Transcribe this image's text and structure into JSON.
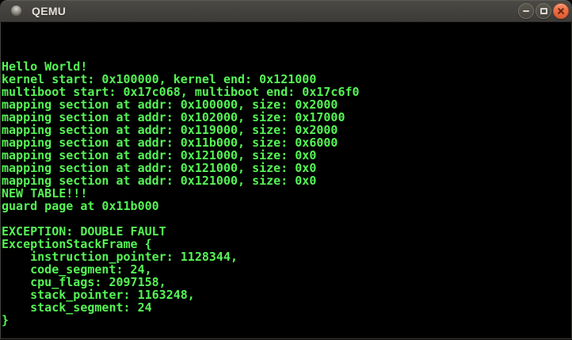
{
  "window": {
    "title": "QEMU",
    "controls": [
      {
        "name": "minimize",
        "icon": "minimize-icon"
      },
      {
        "name": "maximize",
        "icon": "maximize-icon"
      },
      {
        "name": "close",
        "icon": "close-icon"
      }
    ]
  },
  "terminal": {
    "lines": [
      "",
      "",
      "",
      "Hello World!",
      "kernel start: 0x100000, kernel end: 0x121000",
      "multiboot start: 0x17c068, multiboot end: 0x17c6f0",
      "mapping section at addr: 0x100000, size: 0x2000",
      "mapping section at addr: 0x102000, size: 0x17000",
      "mapping section at addr: 0x119000, size: 0x2000",
      "mapping section at addr: 0x11b000, size: 0x6000",
      "mapping section at addr: 0x121000, size: 0x0",
      "mapping section at addr: 0x121000, size: 0x0",
      "mapping section at addr: 0x121000, size: 0x0",
      "NEW TABLE!!!",
      "guard page at 0x11b000",
      "",
      "EXCEPTION: DOUBLE FAULT",
      "ExceptionStackFrame {",
      "    instruction_pointer: 1128344,",
      "    code_segment: 24,",
      "    cpu_flags: 2097158,",
      "    stack_pointer: 1163248,",
      "    stack_segment: 24",
      "}",
      ""
    ]
  },
  "colors": {
    "terminal_text": "#55f555",
    "terminal_background": "#000000",
    "titlebar_top": "#4c4a45",
    "titlebar_bottom": "#3d3b37",
    "title_text": "#e3e0db",
    "close_button": "#ee6e45"
  }
}
